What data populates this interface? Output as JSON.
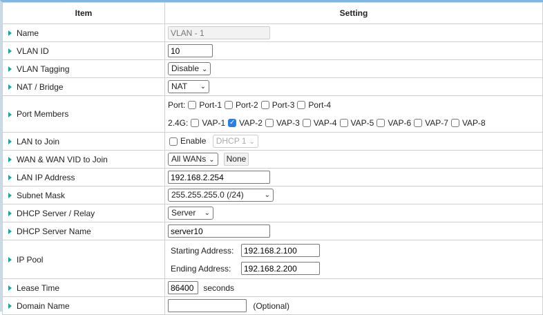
{
  "header": {
    "item": "Item",
    "setting": "Setting"
  },
  "rows": {
    "name": {
      "label": "Name",
      "value": "VLAN - 1"
    },
    "vlan_id": {
      "label": "VLAN ID",
      "value": "10"
    },
    "tagging": {
      "label": "VLAN Tagging",
      "value": "Disable"
    },
    "nat": {
      "label": "NAT / Bridge",
      "value": "NAT"
    },
    "ports": {
      "label": "Port Members",
      "port_label": "Port:",
      "ports": [
        {
          "label": "Port-1",
          "checked": false
        },
        {
          "label": "Port-2",
          "checked": false
        },
        {
          "label": "Port-3",
          "checked": false
        },
        {
          "label": "Port-4",
          "checked": false
        }
      ],
      "wifi_label": "2.4G:",
      "vaps": [
        {
          "label": "VAP-1",
          "checked": false
        },
        {
          "label": "VAP-2",
          "checked": true
        },
        {
          "label": "VAP-3",
          "checked": false
        },
        {
          "label": "VAP-4",
          "checked": false
        },
        {
          "label": "VAP-5",
          "checked": false
        },
        {
          "label": "VAP-6",
          "checked": false
        },
        {
          "label": "VAP-7",
          "checked": false
        },
        {
          "label": "VAP-8",
          "checked": false
        }
      ]
    },
    "lan_join": {
      "label": "LAN to Join",
      "enable": "Enable",
      "dhcp": "DHCP 1"
    },
    "wan": {
      "label": "WAN & WAN VID to Join",
      "value": "All WANs",
      "button": "None"
    },
    "lan_ip": {
      "label": "LAN IP Address",
      "value": "192.168.2.254"
    },
    "subnet": {
      "label": "Subnet Mask",
      "value": "255.255.255.0 (/24)"
    },
    "dhcp": {
      "label": "DHCP Server / Relay",
      "value": "Server"
    },
    "dhcp_name": {
      "label": "DHCP Server Name",
      "value": "server10"
    },
    "pool": {
      "label": "IP Pool",
      "start_label": "Starting Address:",
      "start": "192.168.2.100",
      "end_label": "Ending Address:",
      "end": "192.168.2.200"
    },
    "lease": {
      "label": "Lease Time",
      "value": "86400",
      "unit": "seconds"
    },
    "domain": {
      "label": "Domain Name",
      "value": "",
      "hint": "(Optional)"
    }
  }
}
